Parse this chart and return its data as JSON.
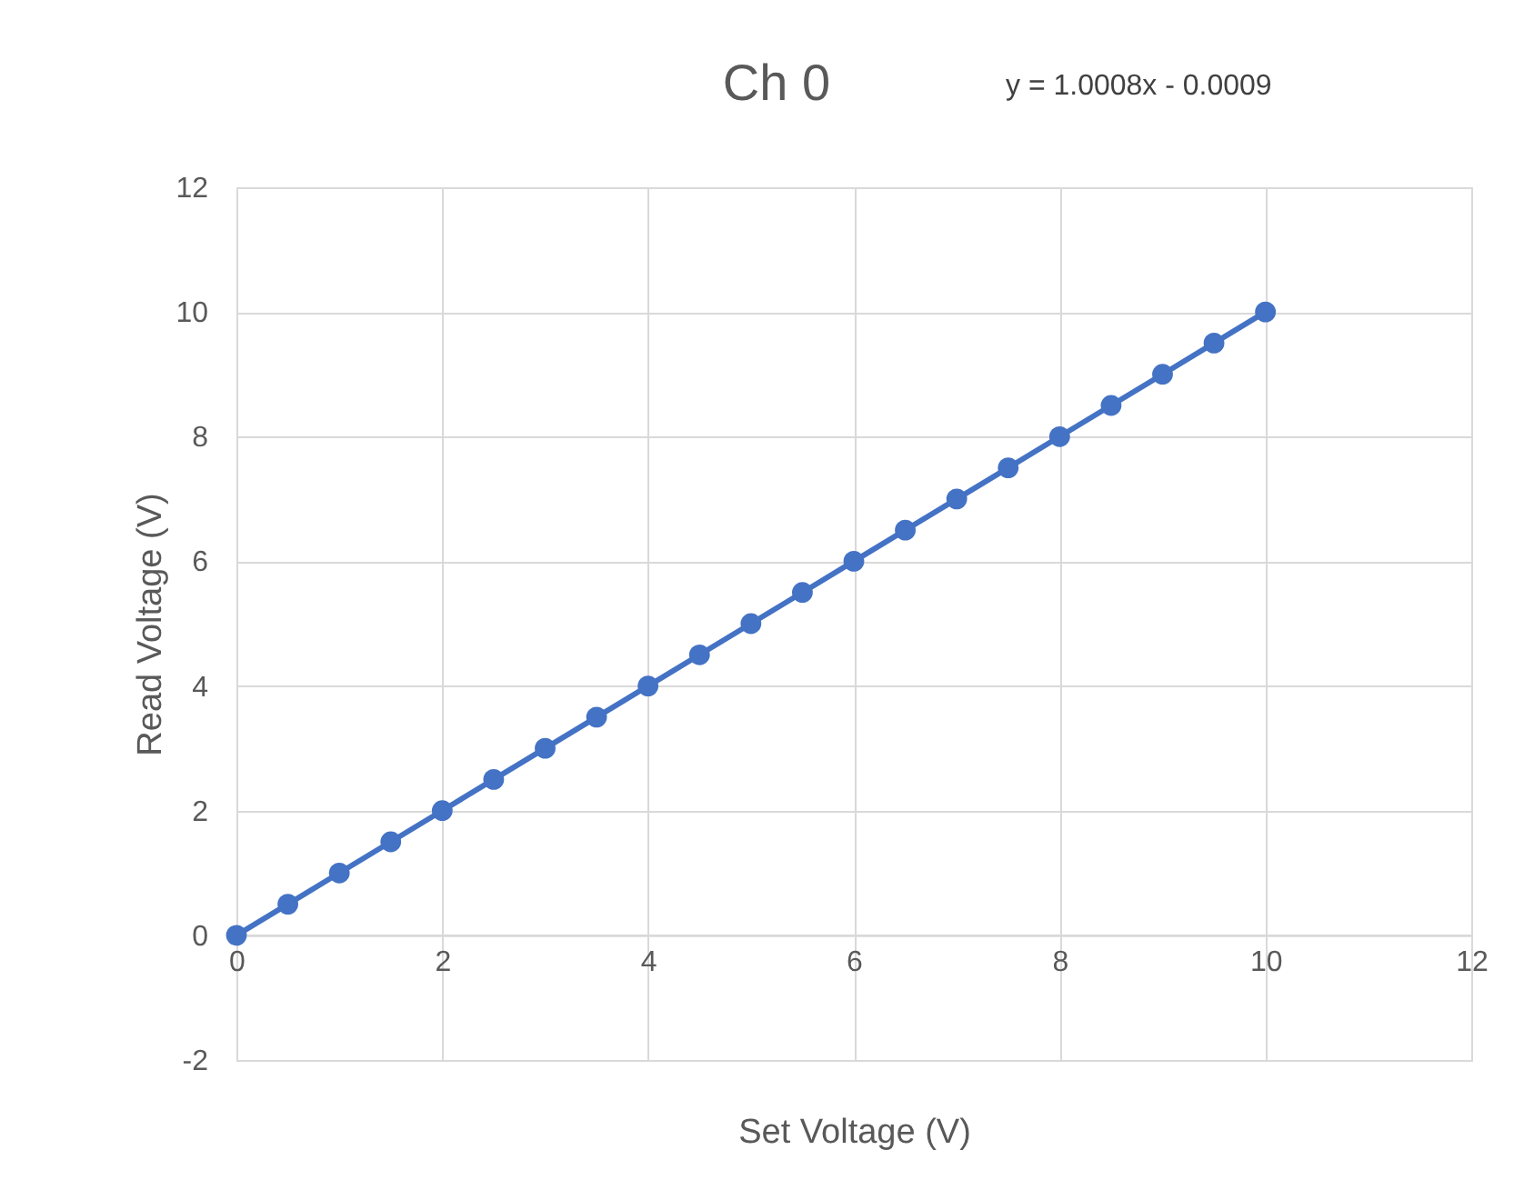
{
  "chart_data": {
    "type": "line",
    "title": "Ch 0",
    "xlabel": "Set Voltage (V)",
    "ylabel": "Read Voltage (V)",
    "annotations": [
      "y = 1.0008x - 0.0009"
    ],
    "x": [
      0,
      0.5,
      1,
      1.5,
      2,
      2.5,
      3,
      3.5,
      4,
      4.5,
      5,
      5.5,
      6,
      6.5,
      7,
      7.5,
      8,
      8.5,
      9,
      9.5,
      10
    ],
    "series": [
      {
        "color": "#4472c4",
        "values": [
          0,
          0.5,
          1,
          1.5,
          2,
          2.5,
          3,
          3.5,
          4,
          4.5,
          5,
          5.5,
          6,
          6.5,
          7,
          7.5,
          8,
          8.5,
          9,
          9.5,
          10
        ]
      }
    ],
    "xlim": [
      0,
      12
    ],
    "xticks": [
      0,
      2,
      4,
      6,
      8,
      10,
      12
    ],
    "ylim": [
      -2,
      12
    ],
    "yticks": [
      -2,
      0,
      2,
      4,
      6,
      8,
      10,
      12
    ],
    "grid": true,
    "marker": "circle",
    "line_style": "solid"
  }
}
